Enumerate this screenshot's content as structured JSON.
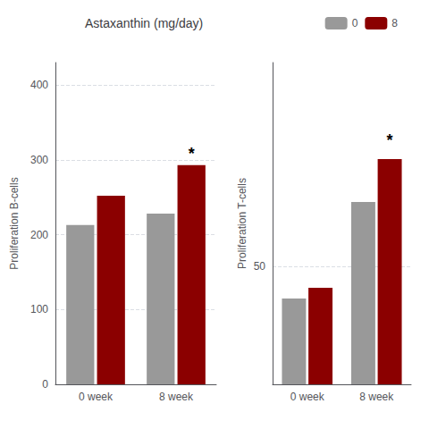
{
  "chart_data": [
    {
      "type": "bar",
      "title": "Astaxanthin (mg/day)",
      "legend": "top",
      "ylabel": "Proliferation B-cells",
      "categories": [
        "0 week",
        "8 week"
      ],
      "series": [
        {
          "name": "0",
          "color": "#999999",
          "values": [
            213,
            228
          ]
        },
        {
          "name": "8",
          "color": "#8b0000",
          "values": [
            252,
            293
          ]
        }
      ],
      "ylim": [
        0,
        430
      ],
      "yticks": [
        0,
        100,
        200,
        300,
        400
      ],
      "grid": true,
      "annotations": [
        {
          "text": "*",
          "category": "8 week",
          "series": "8",
          "y": 297
        }
      ]
    },
    {
      "type": "bar",
      "ylabel": "Proliferation T-cells",
      "categories": [
        "0 week",
        "8 week"
      ],
      "series": [
        {
          "name": "0",
          "color": "#999999",
          "values": [
            44,
            62
          ]
        },
        {
          "name": "8",
          "color": "#8b0000",
          "values": [
            46,
            70
          ]
        }
      ],
      "ylim": [
        28,
        88
      ],
      "yticks": [
        50
      ],
      "grid": true,
      "annotations": [
        {
          "text": "*",
          "category": "8 week",
          "series": "8",
          "y": 72
        }
      ]
    }
  ]
}
